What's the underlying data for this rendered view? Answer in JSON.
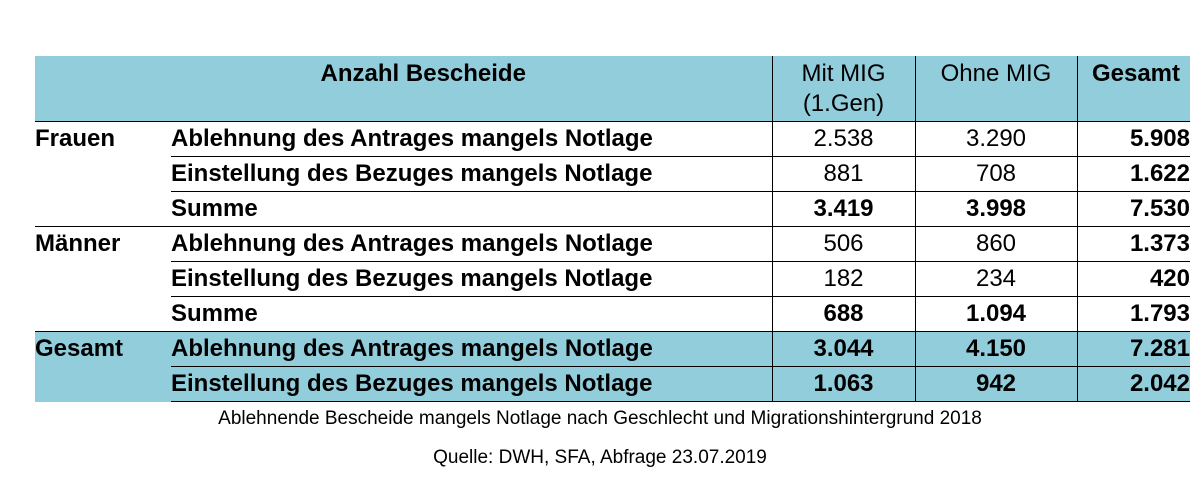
{
  "table": {
    "title": "Anzahl Bescheide",
    "col_mig": "Mit MIG",
    "col_mig_sub": "(1.Gen)",
    "col_ohne": "Ohne MIG",
    "col_total": "Gesamt",
    "groups": [
      {
        "name": "Frauen",
        "rows": [
          {
            "label": "Ablehnung des Antrages mangels Notlage",
            "mig": "2.538",
            "ohne": "3.290",
            "total": "5.908"
          },
          {
            "label": "Einstellung des Bezuges mangels Notlage",
            "mig": "881",
            "ohne": "708",
            "total": "1.622"
          },
          {
            "label": "Summe",
            "mig": "3.419",
            "ohne": "3.998",
            "total": "7.530"
          }
        ]
      },
      {
        "name": "Männer",
        "rows": [
          {
            "label": "Ablehnung des Antrages mangels Notlage",
            "mig": "506",
            "ohne": "860",
            "total": "1.373"
          },
          {
            "label": "Einstellung des Bezuges mangels Notlage",
            "mig": "182",
            "ohne": "234",
            "total": "420"
          },
          {
            "label": "Summe",
            "mig": "688",
            "ohne": "1.094",
            "total": "1.793"
          }
        ]
      },
      {
        "name": "Gesamt",
        "rows": [
          {
            "label": "Ablehnung des Antrages mangels Notlage",
            "mig": "3.044",
            "ohne": "4.150",
            "total": "7.281"
          },
          {
            "label": "Einstellung des Bezuges mangels Notlage",
            "mig": "1.063",
            "ohne": "942",
            "total": "2.042"
          }
        ]
      }
    ]
  },
  "caption": "Ablehnende Bescheide mangels Notlage nach Geschlecht und Migrationshintergrund 2018",
  "source": "Quelle: DWH, SFA, Abfrage 23.07.2019",
  "colors": {
    "header_bg": "#91cddb",
    "total_bg": "#91cddb"
  }
}
